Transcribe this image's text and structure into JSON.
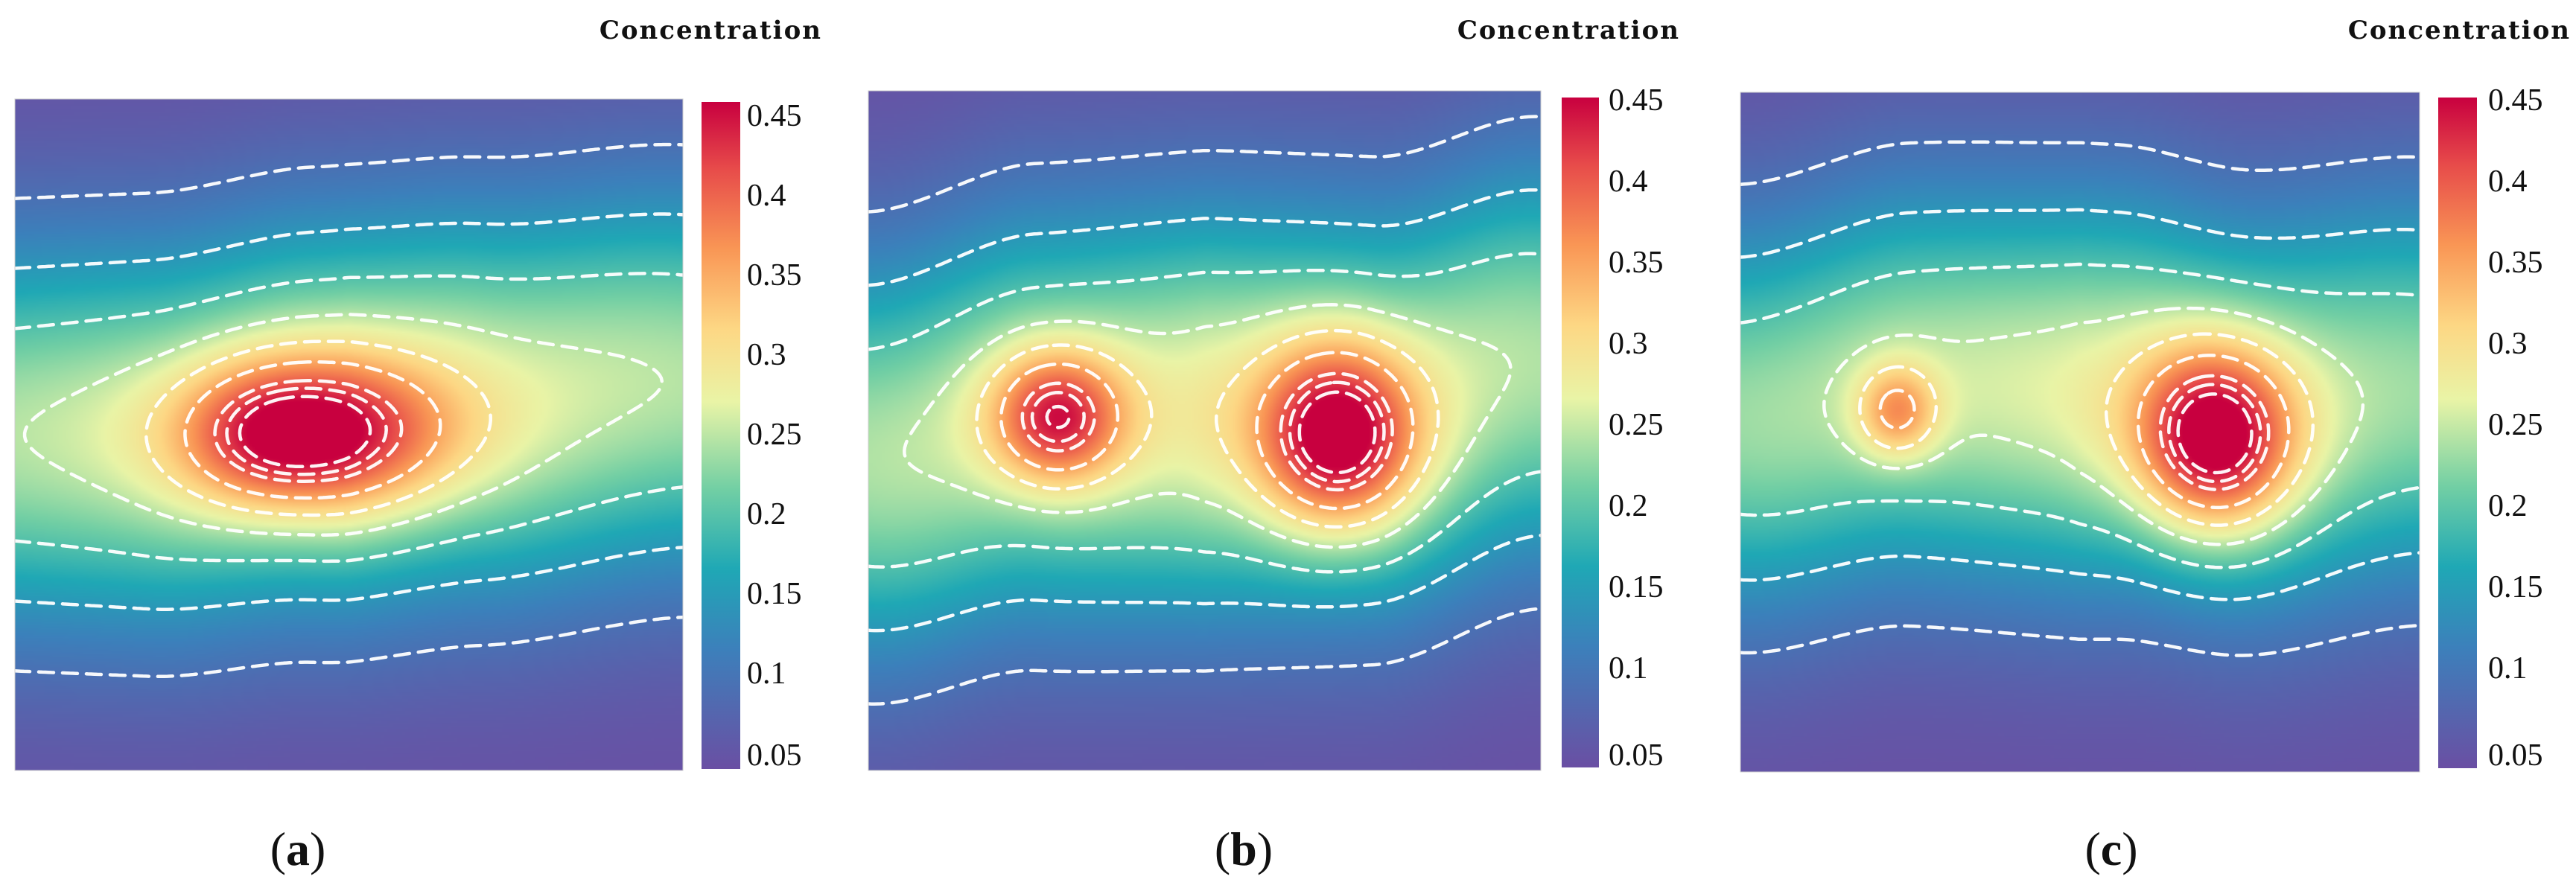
{
  "chart_data": [
    {
      "type": "heatmap",
      "panel": "a",
      "panel_label": "a",
      "colorbar_title": "Concentration",
      "colorbar_ticks": [
        "0.45",
        "0.4",
        "0.35",
        "0.3",
        "0.25",
        "0.2",
        "0.15",
        "0.1",
        "0.05"
      ],
      "value_range": [
        0.05,
        0.45
      ],
      "contour_levels": [
        0.1,
        0.15,
        0.2,
        0.25,
        0.3,
        0.35,
        0.4,
        0.42,
        0.44
      ],
      "background_level": 0.05,
      "peaks": [
        {
          "location": "center-left",
          "value": 0.45
        }
      ],
      "colors": {
        "low": "#6a4fa3",
        "mid_low": "#1f9fb2",
        "mid": "#f2f7b0",
        "mid_high": "#f79a52",
        "high": "#c8003f"
      }
    },
    {
      "type": "heatmap",
      "panel": "b",
      "panel_label": "b",
      "colorbar_title": "Concentration",
      "colorbar_ticks": [
        "0.45",
        "0.4",
        "0.35",
        "0.3",
        "0.25",
        "0.2",
        "0.15",
        "0.1",
        "0.05"
      ],
      "value_range": [
        0.05,
        0.45
      ],
      "contour_levels": [
        0.1,
        0.15,
        0.2,
        0.25,
        0.3,
        0.35,
        0.4,
        0.42,
        0.44
      ],
      "background_level": 0.05,
      "peaks": [
        {
          "location": "left",
          "value": 0.45
        },
        {
          "location": "right",
          "value": 0.45
        }
      ],
      "colors": {
        "low": "#6a4fa3",
        "mid_low": "#1f9fb2",
        "mid": "#f2f7b0",
        "mid_high": "#f79a52",
        "high": "#c8003f"
      }
    },
    {
      "type": "heatmap",
      "panel": "c",
      "panel_label": "c",
      "colorbar_title": "Concentration",
      "colorbar_ticks": [
        "0.45",
        "0.4",
        "0.35",
        "0.3",
        "0.25",
        "0.2",
        "0.15",
        "0.1",
        "0.05"
      ],
      "value_range": [
        0.05,
        0.45
      ],
      "contour_levels": [
        0.1,
        0.15,
        0.2,
        0.25,
        0.3,
        0.35,
        0.4,
        0.42,
        0.44
      ],
      "background_level": 0.05,
      "peaks": [
        {
          "location": "left",
          "value": 0.39
        },
        {
          "location": "right",
          "value": 0.45
        }
      ],
      "colors": {
        "low": "#6a4fa3",
        "mid_low": "#1f9fb2",
        "mid": "#f2f7b0",
        "mid_high": "#f79a52",
        "high": "#c8003f"
      }
    }
  ]
}
